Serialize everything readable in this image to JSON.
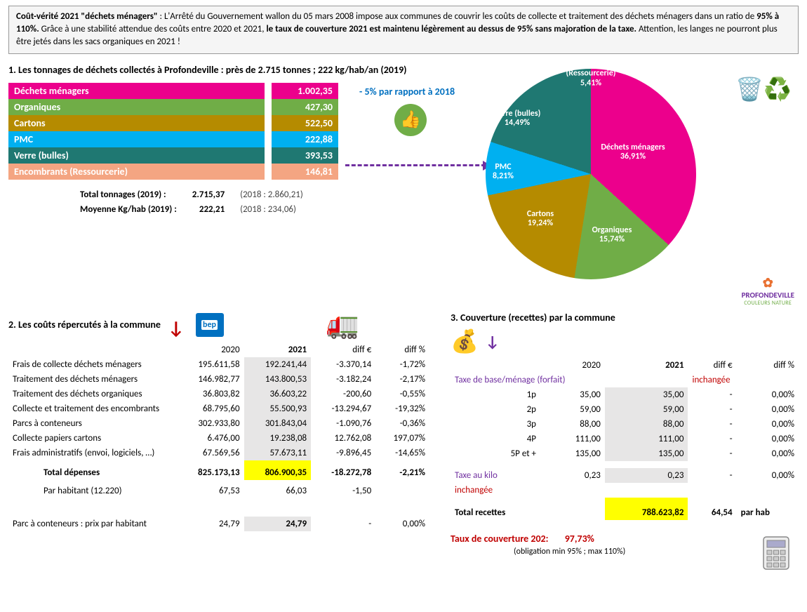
{
  "colors": {
    "pink": "#ec008c",
    "olive": "#b58b00",
    "green": "#70ad47",
    "cyan": "#00b0f0",
    "teal": "#1f7872",
    "peach": "#f4a582",
    "purple": "#7030a0",
    "redtxt": "#c00000",
    "yellowhl": "#ffff00",
    "greyhl": "#e7e6e6"
  },
  "intro": {
    "lead": "Coût-vérité 2021 \"déchets ménagers\"",
    "body1": " : L'Arrêté du Gouvernement wallon du 05 mars 2008 impose aux communes de couvrir les coûts de collecte et traitement des déchets ménagers dans un ratio de ",
    "ratio": "95% à 110%.",
    "body2": " Grâce à une stabilité attendue des coûts entre 2020 et 2021, ",
    "bold2": "le taux de couverture 2021 est maintenu légèrement au dessus de 95% sans majoration de la taxe.",
    "body3": "  Attention, les langes ne pourront plus être jetés dans les sacs organiques en 2021 !"
  },
  "sec1": {
    "title": "1.  Les tonnages de déchets collectés à Profondeville : près de 2.715 tonnes ; 222 kg/hab/an (2019)",
    "rows": [
      {
        "label": "Déchets ménagers",
        "value": "1.002,35",
        "color": "#ec008c",
        "pct": 36.91,
        "plabel": "Déchets ménagers",
        "ppct": "36,91%"
      },
      {
        "label": "Organiques",
        "value": "427,30",
        "color": "#70ad47",
        "pct": 15.74,
        "plabel": "Organiques",
        "ppct": "15,74%"
      },
      {
        "label": "Cartons",
        "value": "522,50",
        "color": "#b58b00",
        "pct": 19.24,
        "plabel": "Cartons",
        "ppct": "19,24%"
      },
      {
        "label": "PMC",
        "value": "222,88",
        "color": "#00b0f0",
        "pct": 8.21,
        "plabel": "PMC",
        "ppct": "8,21%"
      },
      {
        "label": "Verre (bulles)",
        "value": "393,53",
        "color": "#1f7872",
        "pct": 14.49,
        "plabel": "Verre (bulles)",
        "ppct": "14,49%"
      },
      {
        "label": "Encombrants (Ressourcerie)",
        "value": "146,81",
        "color": "#f4a582",
        "pct": 5.41,
        "plabel": "Encombrants (Ressourcerie)",
        "ppct": "5,41%"
      }
    ],
    "totals": [
      {
        "label": "Total tonnages (2019) :",
        "value": "2.715,37",
        "ref": "(2018 : 2.860,21)"
      },
      {
        "label": "Moyenne Kg/hab (2019) :",
        "value": "222,21",
        "ref": "(2018 : 234,06)"
      }
    ],
    "pct_note": "- 5% par rapport à 2018"
  },
  "sec2": {
    "title": "2. Les coûts répercutés à la commune",
    "head": {
      "c1": "2020",
      "c2": "2021",
      "c3": "diff €",
      "c4": "diff %"
    },
    "rows": [
      {
        "lbl": "Frais de collecte déchets ménagers",
        "y20": "195.611,58",
        "y21": "192.241,44",
        "de": "-3.370,14",
        "dp": "-1,72%"
      },
      {
        "lbl": "Traitement des déchets ménagers",
        "y20": "146.982,77",
        "y21": "143.800,53",
        "de": "-3.182,24",
        "dp": "-2,17%"
      },
      {
        "lbl": "Traitement des déchets organiques",
        "y20": "36.803,82",
        "y21": "36.603,22",
        "de": "-200,60",
        "dp": "-0,55%"
      },
      {
        "lbl": "Collecte et traitement des encombrants",
        "y20": "68.795,60",
        "y21": "55.500,93",
        "de": "-13.294,67",
        "dp": "-19,32%"
      },
      {
        "lbl": "Parcs à conteneurs",
        "y20": "302.933,80",
        "y21": "301.843,04",
        "de": "-1.090,76",
        "dp": "-0,36%"
      },
      {
        "lbl": "Collecte papiers cartons",
        "y20": "6.476,00",
        "y21": "19.238,08",
        "de": "12.762,08",
        "dp": "197,07%"
      },
      {
        "lbl": "Frais administratifs (envoi, logiciels, …)",
        "y20": "67.569,56",
        "y21": "57.673,11",
        "de": "-9.896,45",
        "dp": "-14,65%"
      }
    ],
    "total": {
      "lbl": "Total dépenses",
      "y20": "825.173,13",
      "y21": "806.900,35",
      "de": "-18.272,78",
      "dp": "-2,21%"
    },
    "hab": {
      "lbl": "Par habitant (12.220)",
      "y20": "67,53",
      "y21": "66,03",
      "de": "-1,50",
      "dp": ""
    },
    "parc": {
      "lbl": "Parc à conteneurs : prix par habitant",
      "y20": "24,79",
      "y21": "24,79",
      "de": "-",
      "dp": "0,00%"
    }
  },
  "sec3": {
    "title": "3. Couverture (recettes) par la commune",
    "head": {
      "c1": "2020",
      "c2": "2021",
      "c3": "diff €",
      "c4": "diff %"
    },
    "taxe_header": "Taxe de base/ménage (forfait)",
    "inchangee": "inchangée",
    "rows": [
      {
        "lbl": "1p",
        "y20": "35,00",
        "y21": "35,00",
        "de": "-",
        "dp": "0,00%"
      },
      {
        "lbl": "2p",
        "y20": "59,00",
        "y21": "59,00",
        "de": "-",
        "dp": "0,00%"
      },
      {
        "lbl": "3p",
        "y20": "88,00",
        "y21": "88,00",
        "de": "-",
        "dp": "0,00%"
      },
      {
        "lbl": "4P",
        "y20": "111,00",
        "y21": "111,00",
        "de": "-",
        "dp": "0,00%"
      },
      {
        "lbl": "5P et +",
        "y20": "135,00",
        "y21": "135,00",
        "de": "-",
        "dp": "0,00%"
      }
    ],
    "kilo": {
      "lbl": "Taxe au kilo",
      "y20": "0,23",
      "y21": "0,23",
      "de": "-",
      "dp": "0,00%"
    },
    "total": {
      "lbl": "Total recettes",
      "val": "788.623,82",
      "perhab": "64,54",
      "perhablbl": "par hab"
    },
    "taux": {
      "lbl": "Taux de couverture 202:",
      "val": "97,73%",
      "oblig": "(obligation min 95% ; max 110%)"
    }
  },
  "logos": {
    "bep": "bep",
    "profondeville": "PROFONDEVILLE",
    "profondeville_sub": "COULEURS NATURE"
  }
}
